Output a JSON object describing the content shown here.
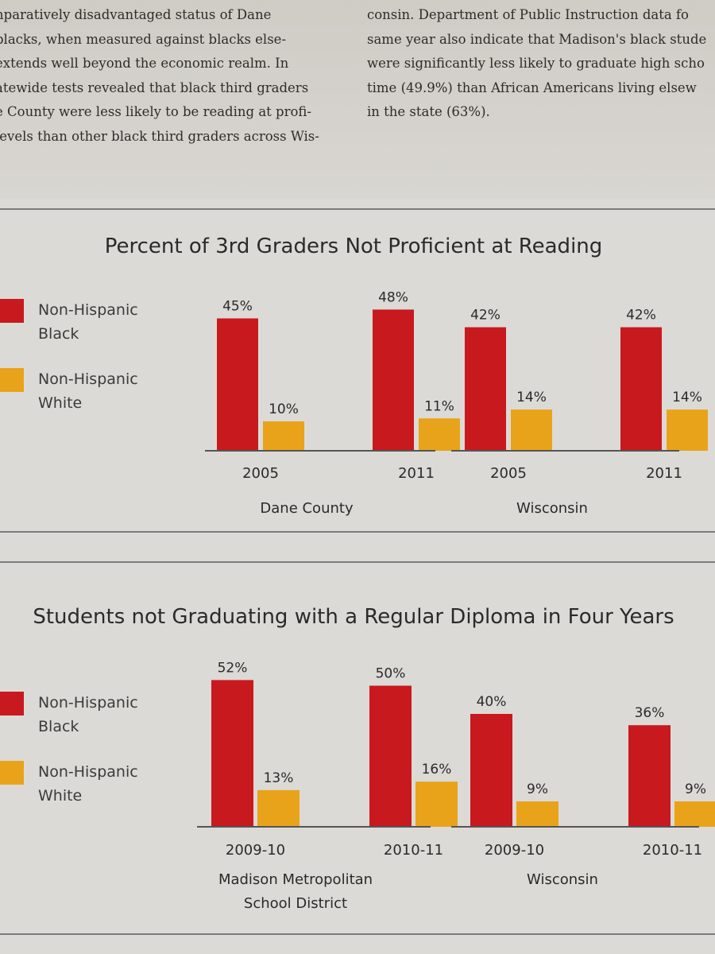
{
  "article": {
    "left_lines": [
      "nparatively disadvantaged status of Dane",
      "blacks, when measured against blacks else-",
      "extends well beyond the economic realm. In",
      "atewide tests revealed that black third graders",
      "e County were less likely to be reading at profi-",
      "levels than other black third graders across Wis-"
    ],
    "right_lines": [
      "consin. Department of Public Instruction data fo",
      "same year also indicate that Madison's black stude",
      "were significantly less likely to graduate high scho",
      "time (49.9%) than African Americans living elsew",
      "in the state (63%)."
    ]
  },
  "colors": {
    "black_series": "#c8191e",
    "white_series": "#e9a31a",
    "axis": "#555555"
  },
  "chart_data": [
    {
      "type": "bar",
      "title": "Percent of 3rd Graders Not Proficient at Reading",
      "legend": [
        "Non-Hispanic Black",
        "Non-Hispanic White"
      ],
      "legend_lines": [
        [
          "Non-Hispanic",
          "Black"
        ],
        [
          "Non-Hispanic",
          "White"
        ]
      ],
      "legend_placement": "left",
      "groups": [
        {
          "name": "Dane County",
          "name_lines": [
            "Dane County"
          ],
          "categories": [
            "2005",
            "2011"
          ],
          "series": [
            {
              "name": "Non-Hispanic Black",
              "values": [
                45,
                48
              ],
              "labels": [
                "45%",
                "48%"
              ]
            },
            {
              "name": "Non-Hispanic White",
              "values": [
                10,
                11
              ],
              "labels": [
                "10%",
                "11%"
              ]
            }
          ]
        },
        {
          "name": "Wisconsin",
          "name_lines": [
            "Wisconsin"
          ],
          "categories": [
            "2005",
            "2011"
          ],
          "series": [
            {
              "name": "Non-Hispanic Black",
              "values": [
                42,
                42
              ],
              "labels": [
                "42%",
                "42%"
              ]
            },
            {
              "name": "Non-Hispanic White",
              "values": [
                14,
                14
              ],
              "labels": [
                "14%",
                "14%"
              ]
            }
          ]
        }
      ],
      "ylim": [
        0,
        50
      ],
      "grid": false
    },
    {
      "type": "bar",
      "title": "Students not Graduating with a Regular Diploma in Four Years",
      "legend": [
        "Non-Hispanic Black",
        "Non-Hispanic White"
      ],
      "legend_lines": [
        [
          "Non-Hispanic",
          "Black"
        ],
        [
          "Non-Hispanic",
          "White"
        ]
      ],
      "legend_placement": "left",
      "groups": [
        {
          "name": "Madison Metropolitan School District",
          "name_lines": [
            "Madison Metropolitan",
            "School District"
          ],
          "categories": [
            "2009-10",
            "2010-11"
          ],
          "series": [
            {
              "name": "Non-Hispanic Black",
              "values": [
                52,
                50
              ],
              "labels": [
                "52%",
                "50%"
              ]
            },
            {
              "name": "Non-Hispanic White",
              "values": [
                13,
                16
              ],
              "labels": [
                "13%",
                "16%"
              ]
            }
          ]
        },
        {
          "name": "Wisconsin",
          "name_lines": [
            "Wisconsin"
          ],
          "categories": [
            "2009-10",
            "2010-11"
          ],
          "series": [
            {
              "name": "Non-Hispanic Black",
              "values": [
                40,
                36
              ],
              "labels": [
                "40%",
                "36%"
              ]
            },
            {
              "name": "Non-Hispanic White",
              "values": [
                9,
                9
              ],
              "labels": [
                "9%",
                "9%"
              ]
            }
          ]
        }
      ],
      "ylim": [
        0,
        55
      ],
      "grid": false
    }
  ]
}
